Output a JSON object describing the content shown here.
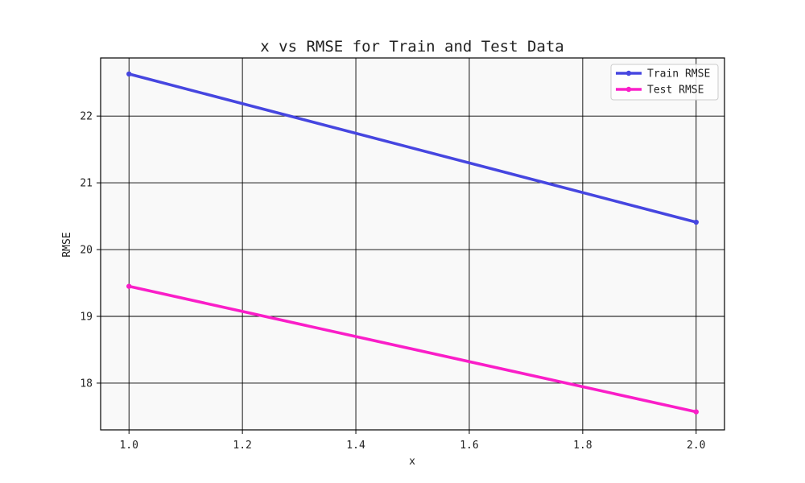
{
  "chart_data": {
    "type": "line",
    "title": "x vs RMSE for Train and Test Data",
    "xlabel": "x",
    "ylabel": "RMSE",
    "xlim": [
      0.95,
      2.05
    ],
    "ylim": [
      17.3,
      22.87
    ],
    "xticks": [
      1.0,
      1.2,
      1.4,
      1.6,
      1.8,
      2.0
    ],
    "xtick_labels": [
      "1.0",
      "1.2",
      "1.4",
      "1.6",
      "1.8",
      "2.0"
    ],
    "yticks": [
      18,
      19,
      20,
      21,
      22
    ],
    "ytick_labels": [
      "18",
      "19",
      "20",
      "21",
      "22"
    ],
    "grid": true,
    "legend_position": "top-right",
    "background_color": "#f9f9f9",
    "grid_color": "#000000",
    "series": [
      {
        "name": "Train RMSE",
        "color": "#4646e0",
        "x": [
          1.0,
          2.0
        ],
        "y": [
          22.63,
          20.41
        ]
      },
      {
        "name": "Test RMSE",
        "color": "#fa1ec8",
        "x": [
          1.0,
          2.0
        ],
        "y": [
          19.45,
          17.57
        ]
      }
    ]
  }
}
